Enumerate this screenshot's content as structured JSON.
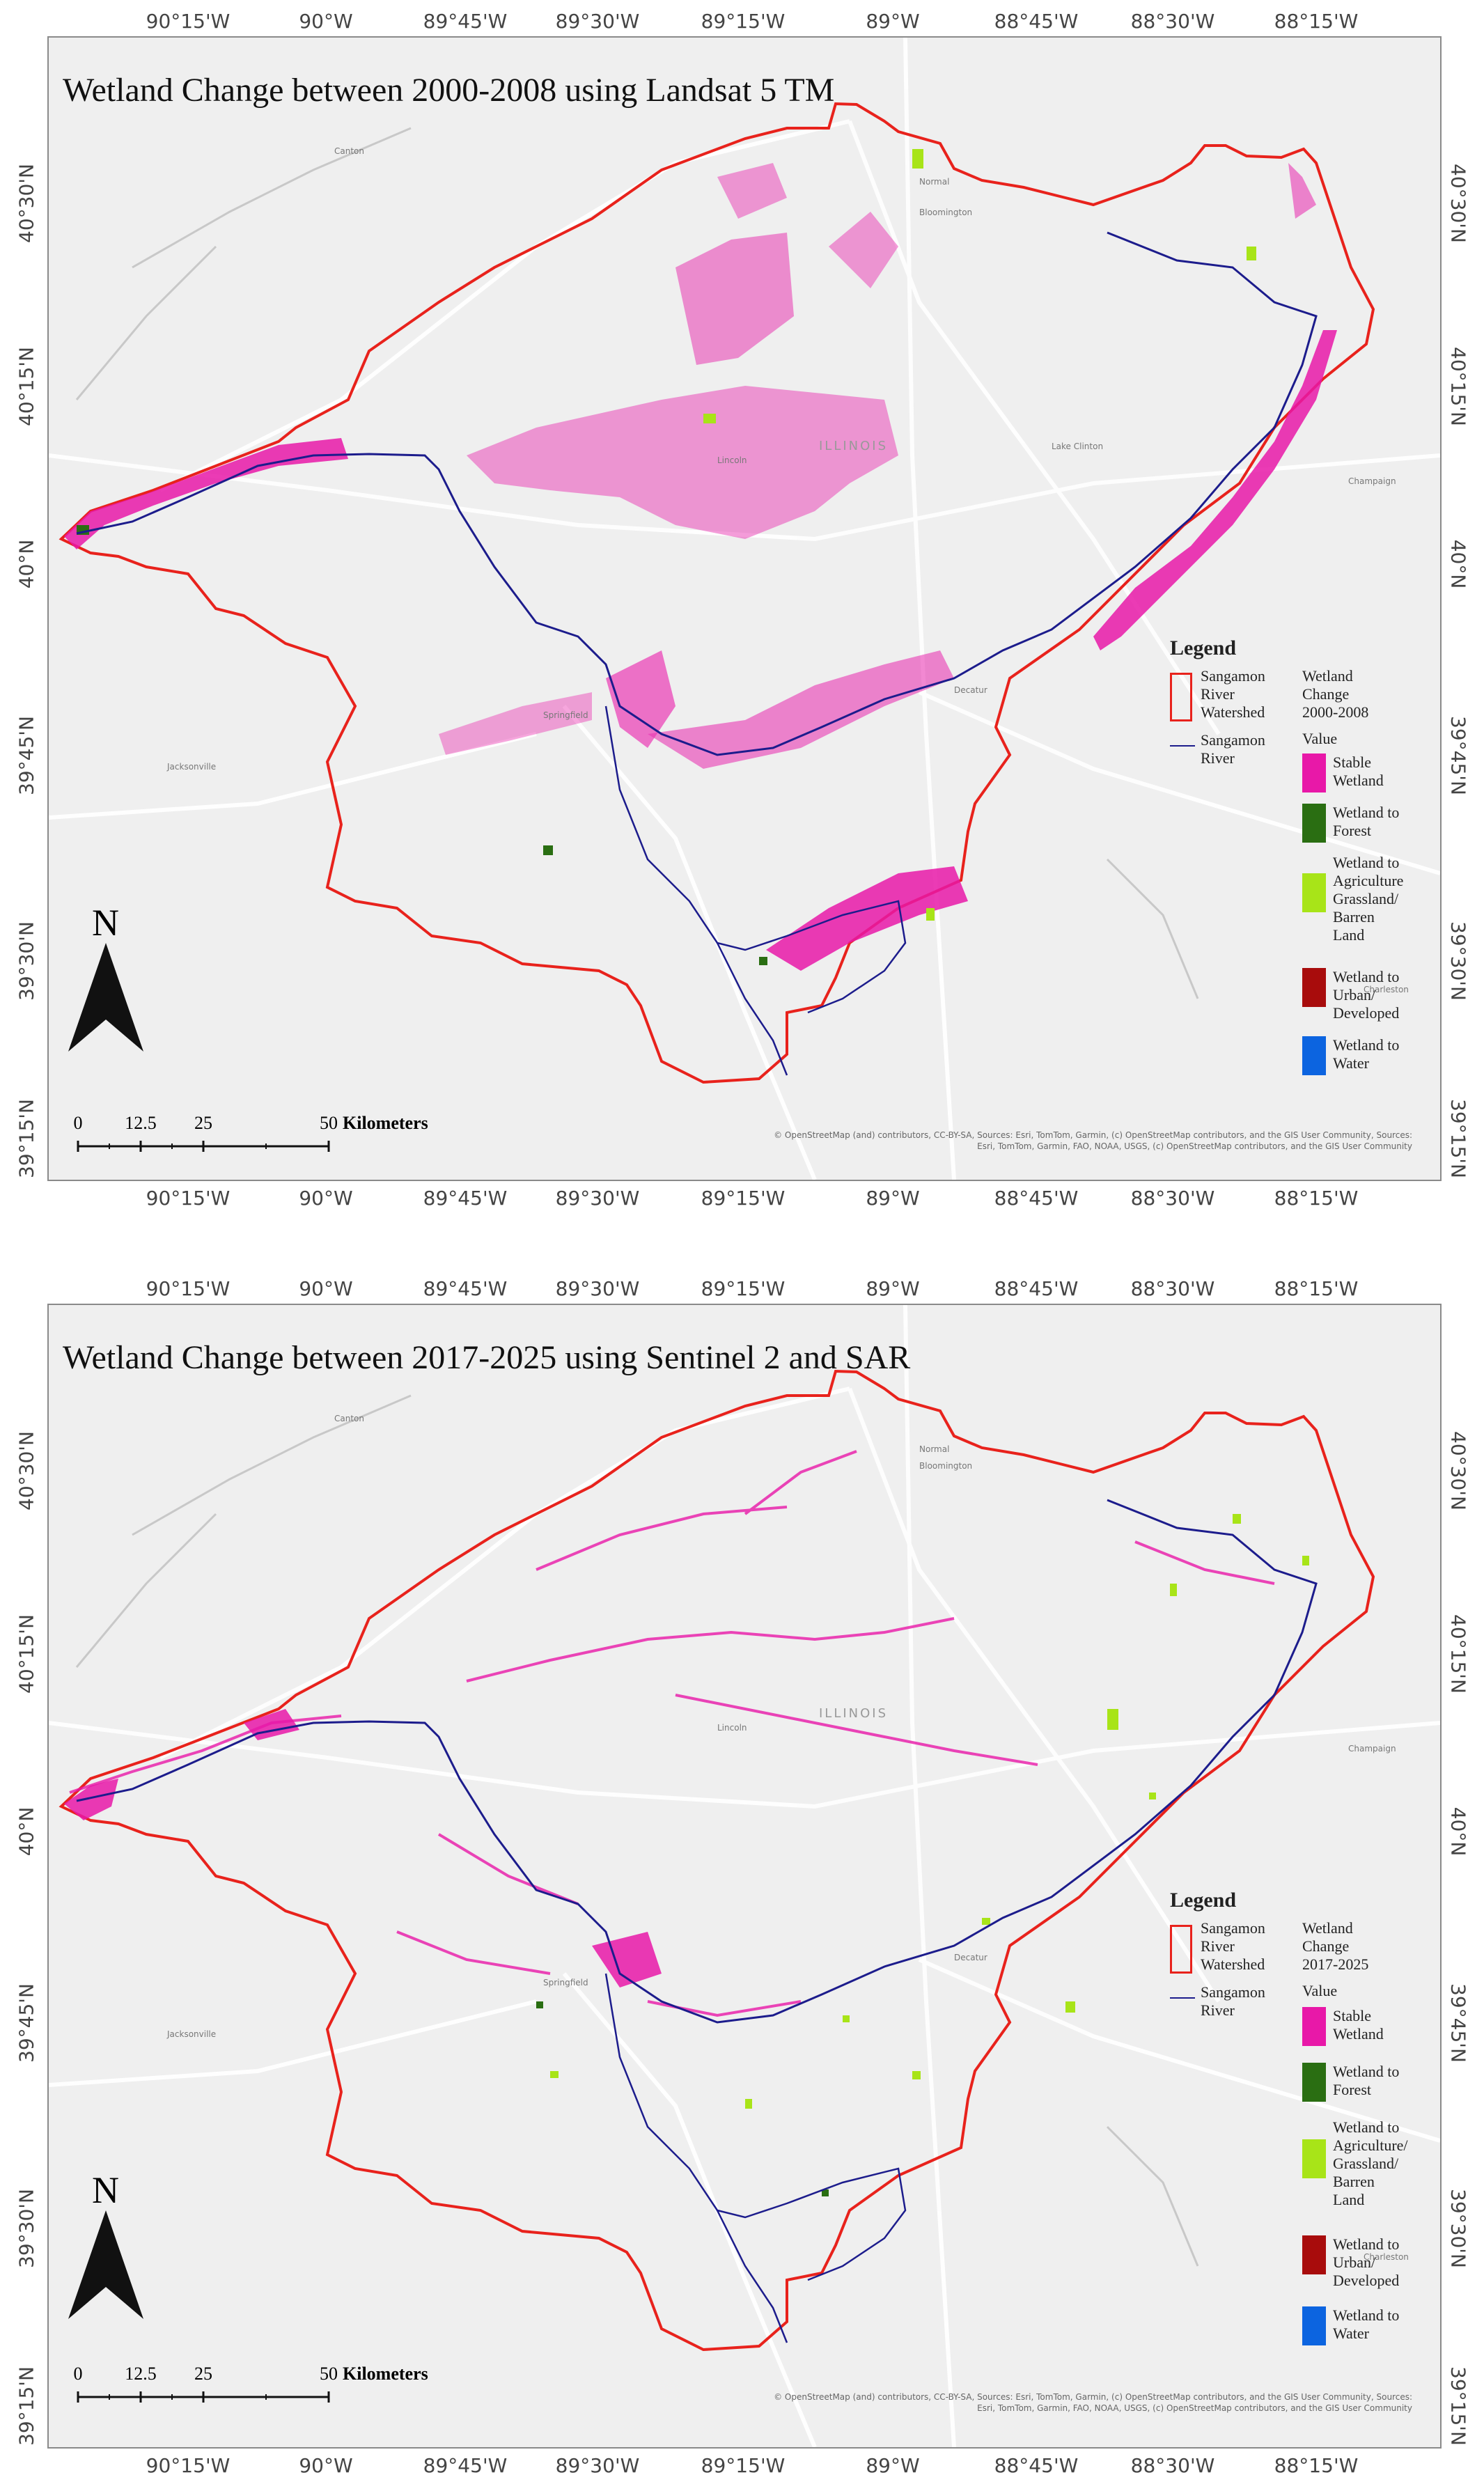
{
  "lon_ticks": [
    "90°15'W",
    "90°W",
    "89°45'W",
    "89°30'W",
    "89°15'W",
    "89°W",
    "88°45'W",
    "88°30'W",
    "88°15'W"
  ],
  "lat_ticks": [
    "40°30'N",
    "40°15'N",
    "40°N",
    "39°45'N",
    "39°30'N",
    "39°15'N"
  ],
  "towns": {
    "canton": "Canton",
    "normal": "Normal",
    "bloomington": "Bloomington",
    "lincoln": "Lincoln",
    "lake_clinton": "Lake Clinton",
    "champaign": "Champaign",
    "decatur": "Decatur",
    "springfield": "Springfield",
    "jacksonville": "Jacksonville",
    "charleston": "Charleston",
    "state": "ILLINOIS"
  },
  "colors": {
    "watershed": "#e8221c",
    "river": "#1c1c8c",
    "stable_wetland": "#e818a8",
    "to_forest": "#2a6e12",
    "to_agriculture": "#a8e418",
    "to_urban": "#a80c0c",
    "to_water": "#0c64e0"
  },
  "map1": {
    "title": "Wetland Change between 2000-2008 using Landsat 5 TM",
    "legend": {
      "title": "Legend",
      "watershed": "Sangamon River Watershed",
      "watershed_lines": [
        "Sangamon",
        "River",
        "Watershed"
      ],
      "river_lines": [
        "Sangamon",
        "River"
      ],
      "change_title_lines": [
        "Wetland",
        "Change",
        "2000-2008"
      ],
      "value": "Value",
      "items": [
        {
          "lines": [
            "Stable",
            "Wetland"
          ],
          "color": "#e818a8"
        },
        {
          "lines": [
            "Wetland to",
            "Forest"
          ],
          "color": "#2a6e12"
        },
        {
          "lines": [
            "Wetland to",
            "Agriculture",
            "Grassland/",
            "Barren",
            "Land"
          ],
          "color": "#a8e418"
        },
        {
          "lines": [
            "Wetland to",
            "Urban/",
            "Developed"
          ],
          "color": "#a80c0c"
        },
        {
          "lines": [
            "Wetland to",
            "Water"
          ],
          "color": "#0c64e0"
        }
      ]
    },
    "north": "N",
    "scale": {
      "labels": [
        "0",
        "12.5",
        "25",
        "50"
      ],
      "unit": "Kilometers"
    },
    "attribution_lines": [
      "© OpenStreetMap (and) contributors, CC-BY-SA, Sources: Esri, TomTom, Garmin, (c) OpenStreetMap contributors, and the GIS User Community, Sources:",
      "Esri, TomTom, Garmin, FAO, NOAA, USGS, (c) OpenStreetMap contributors, and the GIS User Community"
    ]
  },
  "map2": {
    "title": "Wetland Change between 2017-2025 using Sentinel 2 and SAR",
    "legend": {
      "title": "Legend",
      "watershed_lines": [
        "Sangamon",
        "River",
        "Watershed"
      ],
      "river_lines": [
        "Sangamon",
        "River"
      ],
      "change_title_lines": [
        "Wetland",
        "Change",
        "2017-2025"
      ],
      "value": "Value",
      "items": [
        {
          "lines": [
            "Stable",
            "Wetland"
          ],
          "color": "#e818a8"
        },
        {
          "lines": [
            "Wetland to",
            "Forest"
          ],
          "color": "#2a6e12"
        },
        {
          "lines": [
            "Wetland to",
            "Agriculture/",
            "Grassland/",
            "Barren",
            "Land"
          ],
          "color": "#a8e418"
        },
        {
          "lines": [
            "Wetland to",
            "Urban/",
            "Developed"
          ],
          "color": "#a80c0c"
        },
        {
          "lines": [
            "Wetland to",
            "Water"
          ],
          "color": "#0c64e0"
        }
      ]
    },
    "north": "N",
    "scale": {
      "labels": [
        "0",
        "12.5",
        "25",
        "50"
      ],
      "unit": "Kilometers"
    },
    "attribution_lines": [
      "© OpenStreetMap (and) contributors, CC-BY-SA, Sources: Esri, TomTom, Garmin, (c) OpenStreetMap contributors, and the GIS User Community, Sources:",
      "Esri, TomTom, Garmin, FAO, NOAA, USGS, (c) OpenStreetMap contributors, and the GIS User Community"
    ]
  }
}
